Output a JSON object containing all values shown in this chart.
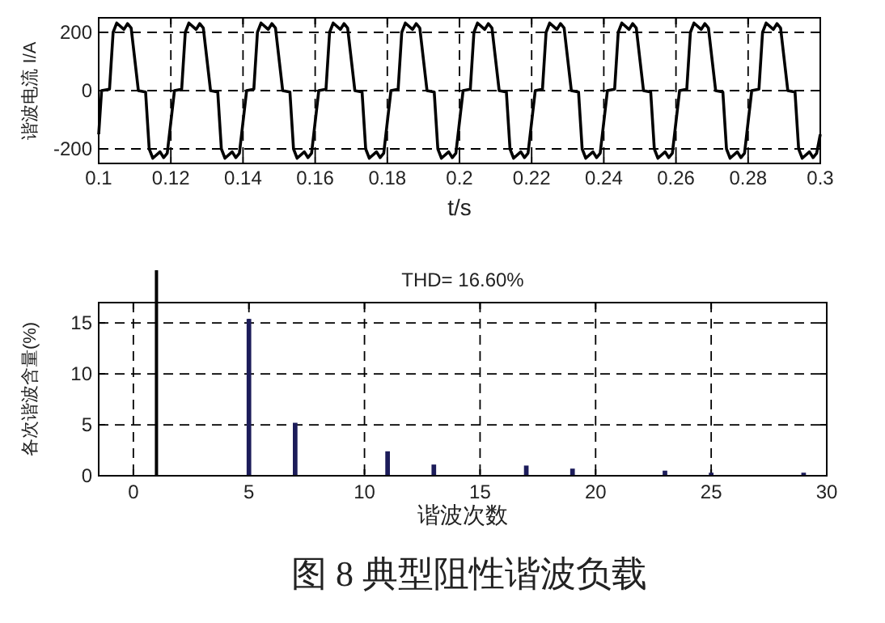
{
  "chart_data": [
    {
      "type": "line",
      "xlabel": "t/s",
      "ylabel": "谐波电流 I/A",
      "color": "#000000",
      "line_style": "solid",
      "grid": true,
      "x": [
        0.1,
        0.1008,
        0.103,
        0.104,
        0.105,
        0.107,
        0.108,
        0.109,
        0.111,
        0.113,
        0.114,
        0.115,
        0.117,
        0.118,
        0.119,
        0.121,
        0.123,
        0.124,
        0.125,
        0.127,
        0.128,
        0.129,
        0.131,
        0.133,
        0.134,
        0.135,
        0.137,
        0.138,
        0.139,
        0.141,
        0.143,
        0.144,
        0.145,
        0.147,
        0.148,
        0.149,
        0.151,
        0.153,
        0.154,
        0.155,
        0.157,
        0.158,
        0.159,
        0.161,
        0.163,
        0.164,
        0.165,
        0.167,
        0.168,
        0.169,
        0.171,
        0.173,
        0.174,
        0.175,
        0.177,
        0.178,
        0.179,
        0.181,
        0.183,
        0.184,
        0.185,
        0.187,
        0.188,
        0.189,
        0.191,
        0.193,
        0.194,
        0.195,
        0.197,
        0.198,
        0.199,
        0.201,
        0.203,
        0.204,
        0.205,
        0.207,
        0.208,
        0.209,
        0.211,
        0.213,
        0.214,
        0.215,
        0.217,
        0.218,
        0.219,
        0.221,
        0.223,
        0.224,
        0.225,
        0.227,
        0.228,
        0.229,
        0.231,
        0.233,
        0.234,
        0.235,
        0.237,
        0.238,
        0.239,
        0.241,
        0.243,
        0.244,
        0.245,
        0.247,
        0.248,
        0.249,
        0.251,
        0.253,
        0.254,
        0.255,
        0.257,
        0.258,
        0.259,
        0.261,
        0.263,
        0.264,
        0.265,
        0.267,
        0.268,
        0.269,
        0.271,
        0.273,
        0.274,
        0.275,
        0.277,
        0.278,
        0.279,
        0.281,
        0.283,
        0.284,
        0.285,
        0.287,
        0.288,
        0.289,
        0.291,
        0.293,
        0.294,
        0.295,
        0.297,
        0.298,
        0.299,
        0.3
      ],
      "values": [
        -150,
        0,
        5,
        200,
        232,
        210,
        230,
        215,
        0,
        -5,
        -200,
        -232,
        -210,
        -230,
        -215,
        0,
        5,
        200,
        232,
        210,
        230,
        215,
        0,
        -5,
        -200,
        -232,
        -210,
        -230,
        -215,
        0,
        5,
        200,
        232,
        210,
        230,
        215,
        0,
        -5,
        -200,
        -232,
        -210,
        -230,
        -215,
        0,
        5,
        200,
        232,
        210,
        230,
        215,
        0,
        -5,
        -200,
        -232,
        -210,
        -230,
        -215,
        0,
        5,
        200,
        232,
        210,
        230,
        215,
        0,
        -5,
        -200,
        -232,
        -210,
        -230,
        -215,
        0,
        5,
        200,
        232,
        210,
        230,
        215,
        0,
        -5,
        -200,
        -232,
        -210,
        -230,
        -215,
        0,
        5,
        200,
        232,
        210,
        230,
        215,
        0,
        -5,
        -200,
        -232,
        -210,
        -230,
        -215,
        0,
        5,
        200,
        232,
        210,
        230,
        215,
        0,
        -5,
        -200,
        -232,
        -210,
        -230,
        -215,
        0,
        5,
        200,
        232,
        210,
        230,
        215,
        0,
        -5,
        -200,
        -232,
        -210,
        -230,
        -215,
        0,
        5,
        200,
        232,
        210,
        230,
        215,
        0,
        -5,
        -200,
        -232,
        -210,
        -230,
        -215,
        -150
      ],
      "xlim": [
        0.1,
        0.3
      ],
      "ylim": [
        -250,
        250
      ],
      "xticks": [
        0.1,
        0.12,
        0.14,
        0.16,
        0.18,
        0.2,
        0.22,
        0.24,
        0.26,
        0.28,
        0.3
      ],
      "yticks": [
        -200,
        0,
        200
      ]
    },
    {
      "type": "bar",
      "title": "THD= 16.60%",
      "xlabel": "谐波次数",
      "ylabel": "各次谐波含量(%)",
      "color": "#1c1c5a",
      "grid": true,
      "x": [
        5,
        7,
        11,
        13,
        17,
        19,
        23,
        25,
        29
      ],
      "values": [
        15.4,
        5.2,
        2.4,
        1.1,
        1.0,
        0.7,
        0.5,
        0.3,
        0.3
      ],
      "xlim": [
        -1.5,
        30
      ],
      "ylim": [
        0,
        17
      ],
      "xticks": [
        0,
        5,
        10,
        15,
        20,
        25,
        30
      ],
      "yticks": [
        0,
        5,
        10,
        15
      ],
      "ref_lines": [
        {
          "axis": "x",
          "value": 1,
          "color": "#000000"
        }
      ],
      "annotations": [
        "图 8 典型阻性谐波负载"
      ]
    }
  ]
}
